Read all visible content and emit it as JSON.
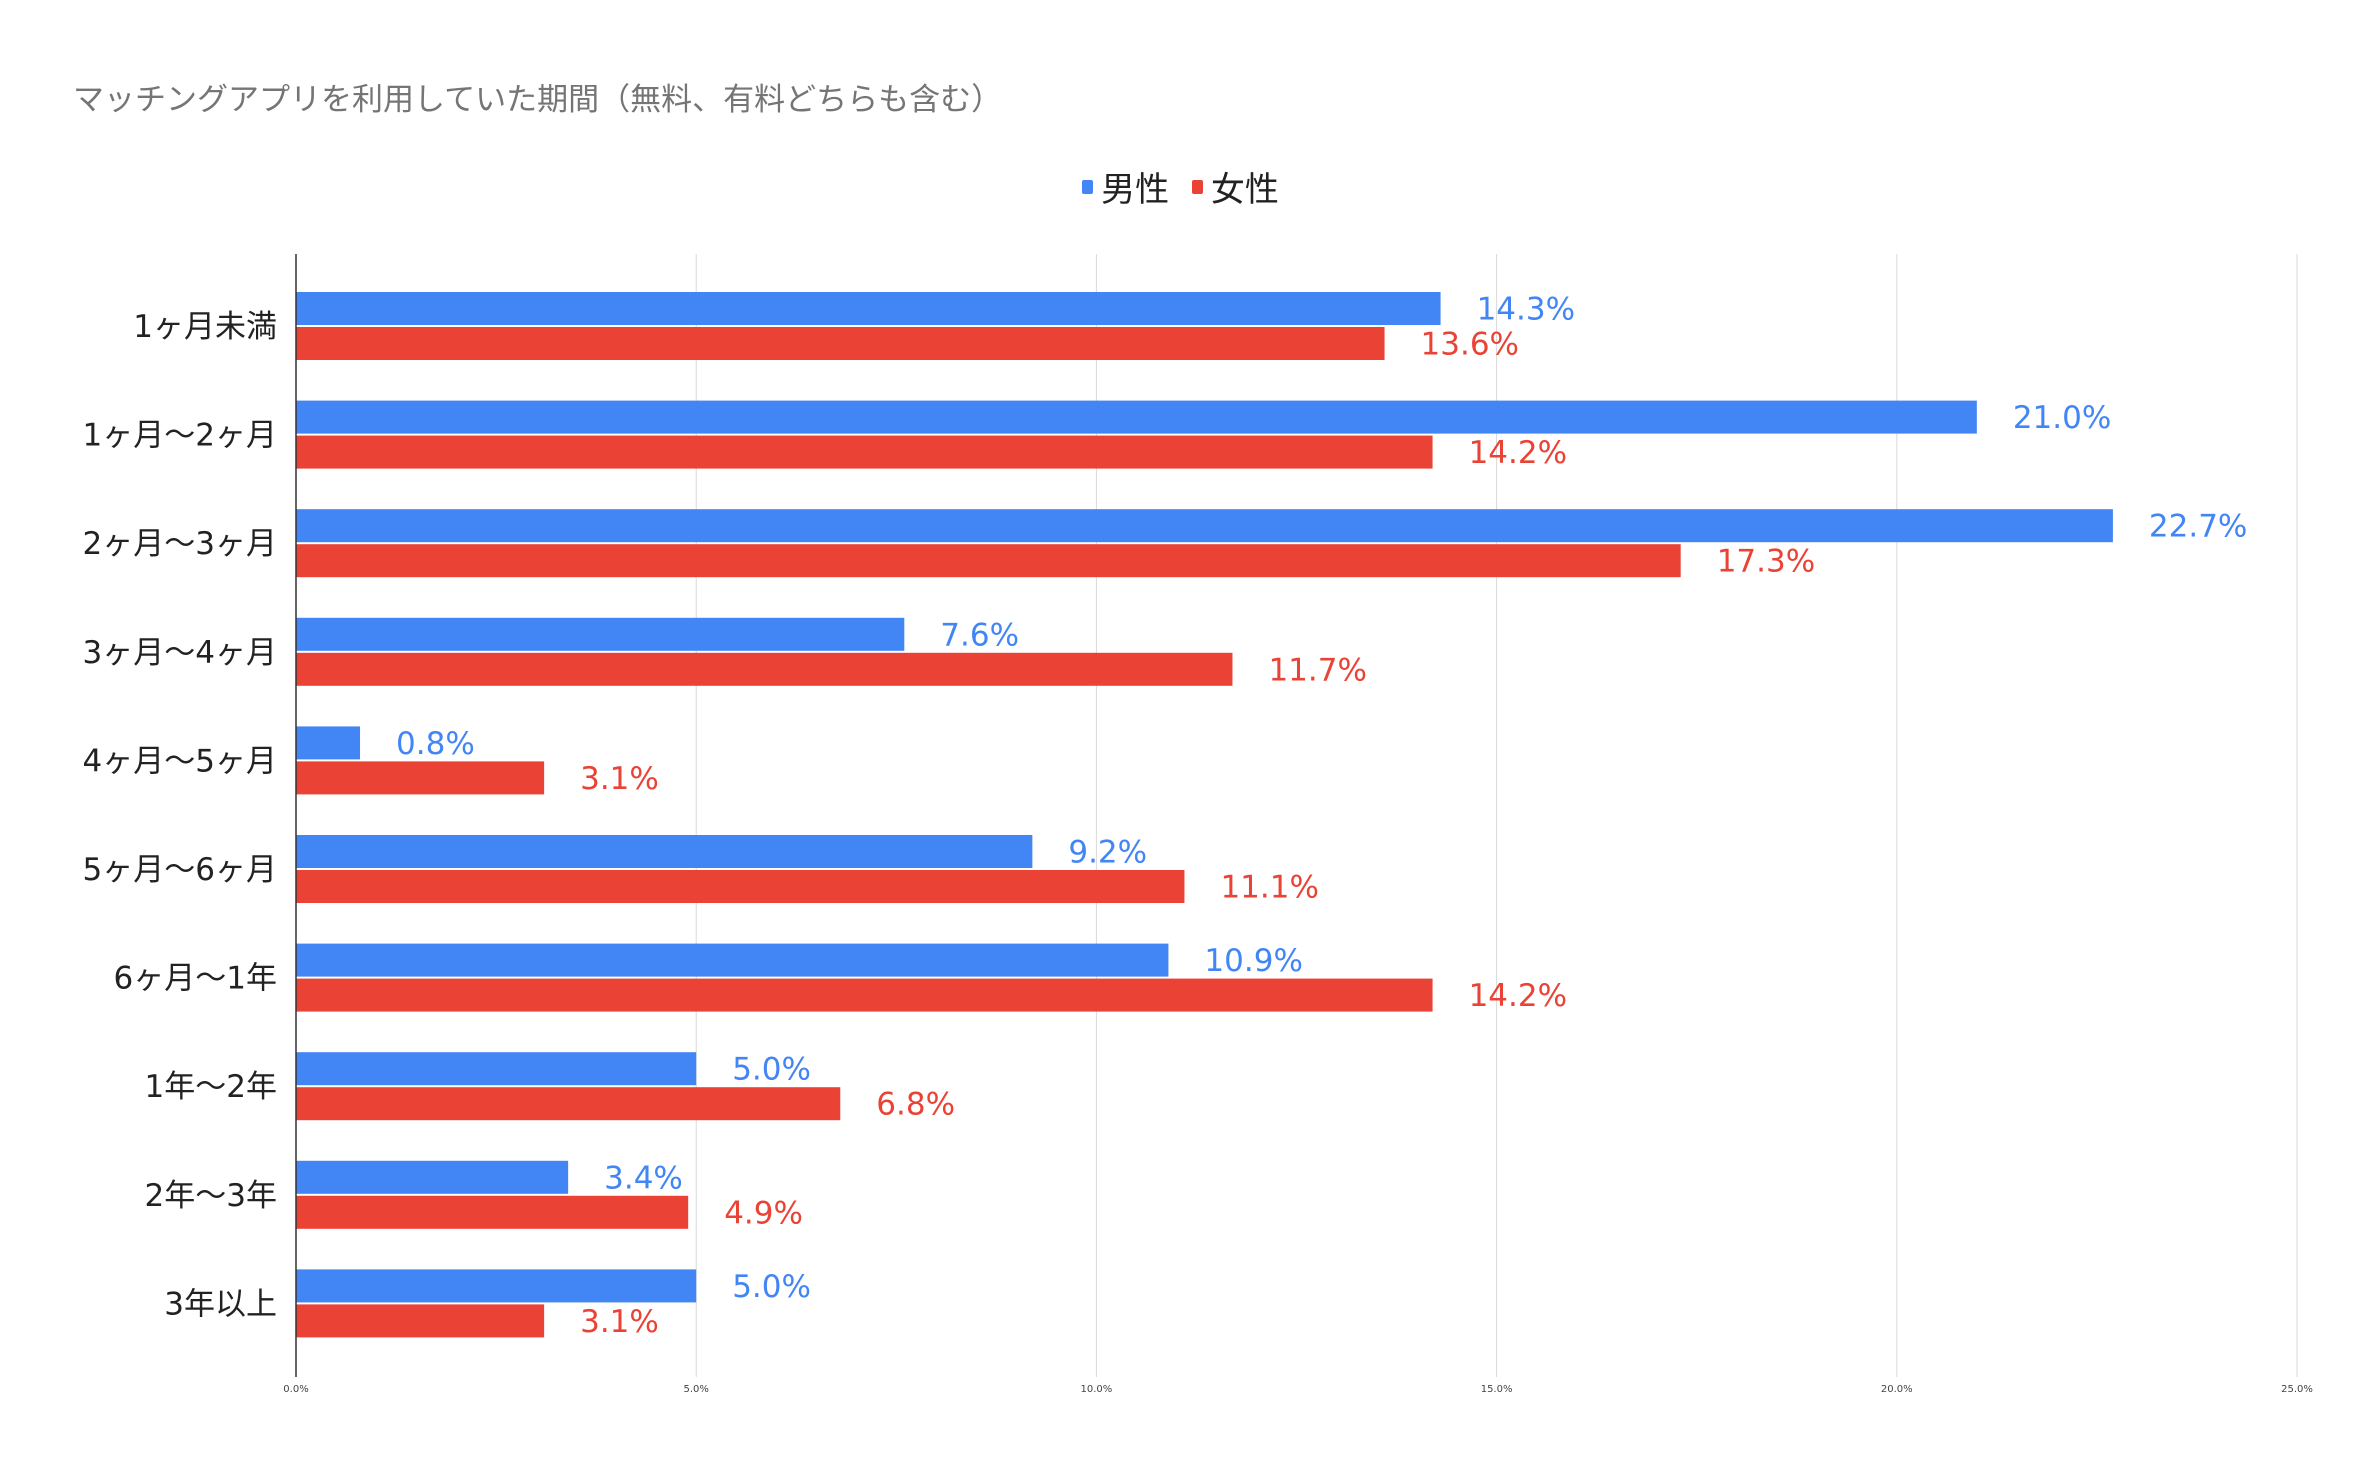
{
  "chart_data": {
    "type": "bar",
    "orientation": "horizontal",
    "title": "マッチングアプリを利用していた期間（無料、有料どちらも含む）",
    "categories": [
      "1ヶ月未満",
      "1ヶ月〜2ヶ月",
      "2ヶ月〜3ヶ月",
      "3ヶ月〜4ヶ月",
      "4ヶ月〜5ヶ月",
      "5ヶ月〜6ヶ月",
      "6ヶ月〜1年",
      "1年〜2年",
      "2年〜3年",
      "3年以上"
    ],
    "series": [
      {
        "name": "男性",
        "color": "#4285f4",
        "values": [
          14.3,
          21.0,
          22.7,
          7.6,
          0.8,
          9.2,
          10.9,
          5.0,
          3.4,
          5.0
        ]
      },
      {
        "name": "女性",
        "color": "#ea4335",
        "values": [
          13.6,
          14.2,
          17.3,
          11.7,
          3.1,
          11.1,
          14.2,
          6.8,
          4.9,
          3.1
        ]
      }
    ],
    "xlim": [
      0,
      25
    ],
    "xticks": [
      "0.0%",
      "5.0%",
      "10.0%",
      "15.0%",
      "20.0%",
      "25.0%"
    ],
    "xlabel": "",
    "ylabel": "",
    "grid": true,
    "legend_position": "top-center"
  }
}
